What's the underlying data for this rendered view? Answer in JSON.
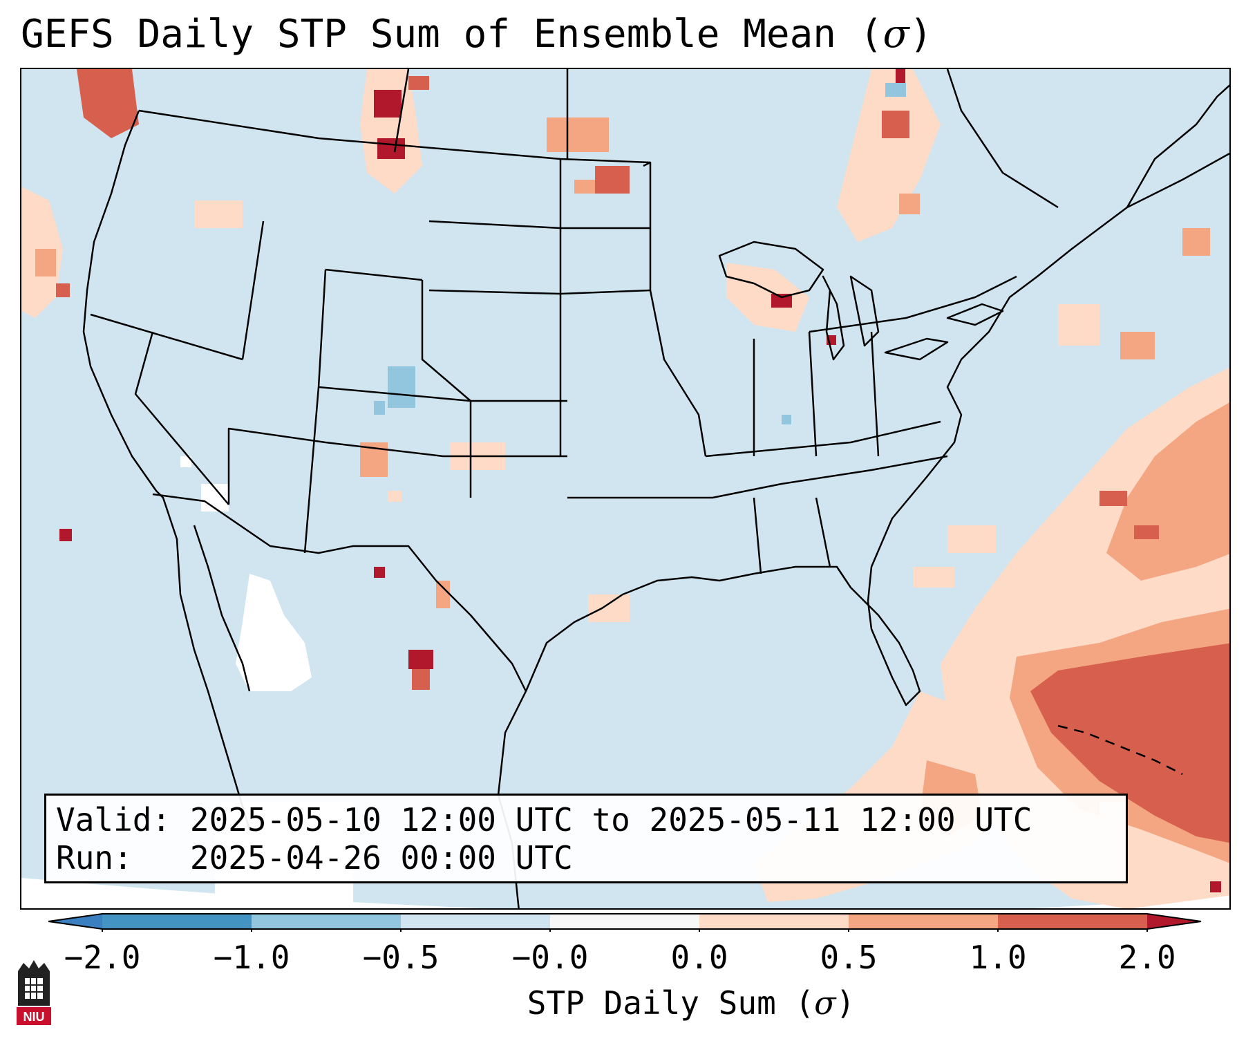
{
  "title": {
    "prefix": "GEFS Daily STP Sum of Ensemble Mean (",
    "symbol": "σ",
    "suffix": ")"
  },
  "info_box": {
    "valid_label": "Valid:",
    "valid_value": "2025-05-10 12:00 UTC to 2025-05-11 12:00 UTC",
    "run_label": "Run:",
    "run_value": "2025-04-26 00:00 UTC"
  },
  "colorbar": {
    "label_prefix": "STP Daily Sum (",
    "label_symbol": "σ",
    "label_suffix": ")",
    "ticks": [
      "−2.0",
      "−1.0",
      "−0.5",
      "−0.0",
      "0.0",
      "0.5",
      "1.0",
      "2.0"
    ],
    "colors": {
      "under": "#3a7fbf",
      "bins": [
        "#4393c3",
        "#92c5de",
        "#d1e5f0",
        "#f7f7f7",
        "#fddbc7",
        "#f4a582",
        "#d6604d"
      ],
      "over": "#b2182b"
    }
  },
  "map": {
    "background_color": "#d1e5f0",
    "off_globe_color": "#ffffff",
    "border_color": "#000000",
    "coastline_color": "#000000"
  },
  "logo": {
    "text": "NIU",
    "color": "#c8102e"
  }
}
